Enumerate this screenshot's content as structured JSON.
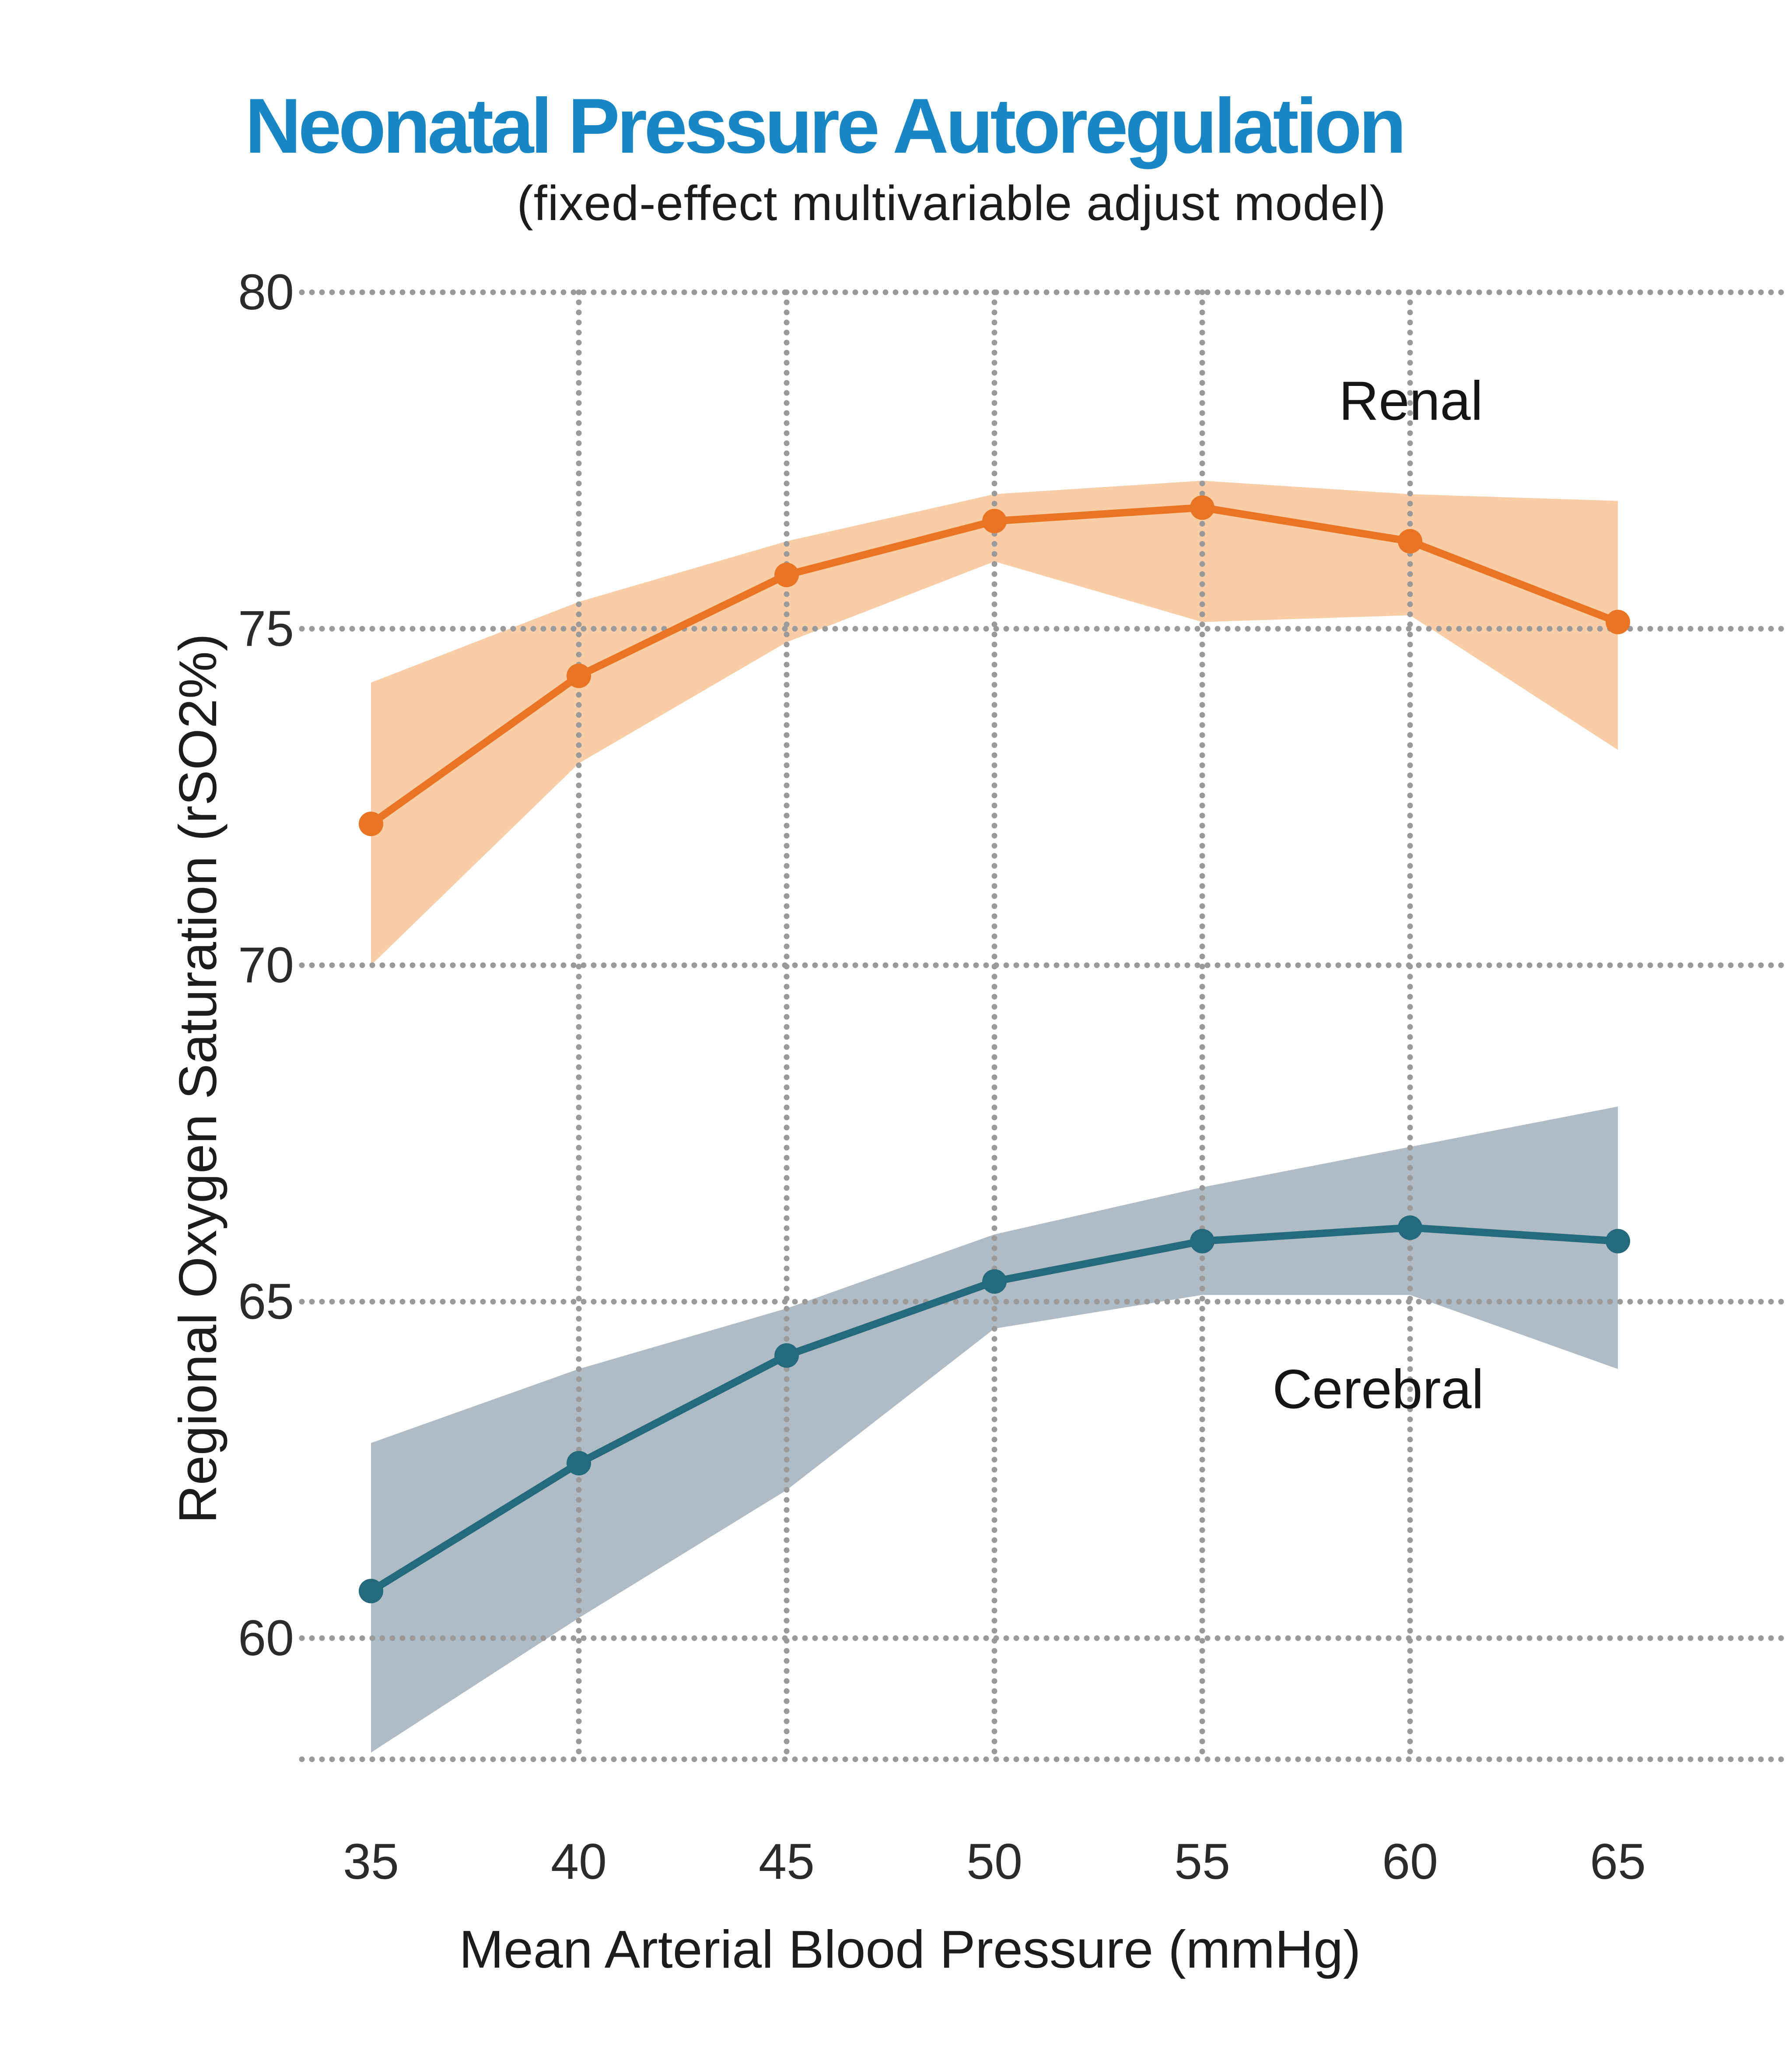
{
  "colors": {
    "title_blue": "#1987C6",
    "grid_dots": "#9a9a9a",
    "text_dark": "#1c1c1c"
  },
  "chart_data": {
    "type": "line",
    "title": "Neonatal Pressure Autoregulation",
    "subtitle": "(fixed-effect multivariable adjust model)",
    "xlabel": "Mean Arterial Blood Pressure (mmHg)",
    "ylabel": "Regional Oxygen Saturation (rSO2%)",
    "x": [
      35,
      40,
      45,
      50,
      55,
      60,
      65
    ],
    "x_tick_labels": [
      "35",
      "40",
      "45",
      "50",
      "55",
      "60",
      "65"
    ],
    "y_tick_labels": [
      "80",
      "75",
      "70",
      "65",
      "60"
    ],
    "y_ticks": [
      80,
      75,
      70,
      65,
      60
    ],
    "xlim": [
      35,
      65
    ],
    "ylim": [
      58.2,
      80
    ],
    "grid": "dotted, horizontal at every y tick plus bottom edge, vertical at interior x ticks",
    "legend_position": "inline text annotations near each band",
    "series": [
      {
        "name": "Renal",
        "values": [
          72.1,
          74.3,
          75.8,
          76.6,
          76.8,
          76.3,
          75.1
        ],
        "ci_upper": [
          74.2,
          75.4,
          76.3,
          77.0,
          77.2,
          77.0,
          76.9
        ],
        "ci_lower": [
          70.0,
          73.0,
          74.8,
          76.0,
          75.1,
          75.2,
          73.2
        ],
        "line_color": "#E87424",
        "band_color": "#F9CDA6"
      },
      {
        "name": "Cerebral",
        "values": [
          60.7,
          62.6,
          64.2,
          65.3,
          65.9,
          66.1,
          65.9
        ],
        "ci_upper": [
          62.9,
          64.0,
          64.9,
          66.0,
          66.7,
          67.3,
          67.9
        ],
        "ci_lower": [
          58.3,
          60.3,
          62.2,
          64.6,
          65.1,
          65.1,
          64.0
        ],
        "line_color": "#246A7C",
        "band_color": "#AFBCC5"
      }
    ]
  }
}
